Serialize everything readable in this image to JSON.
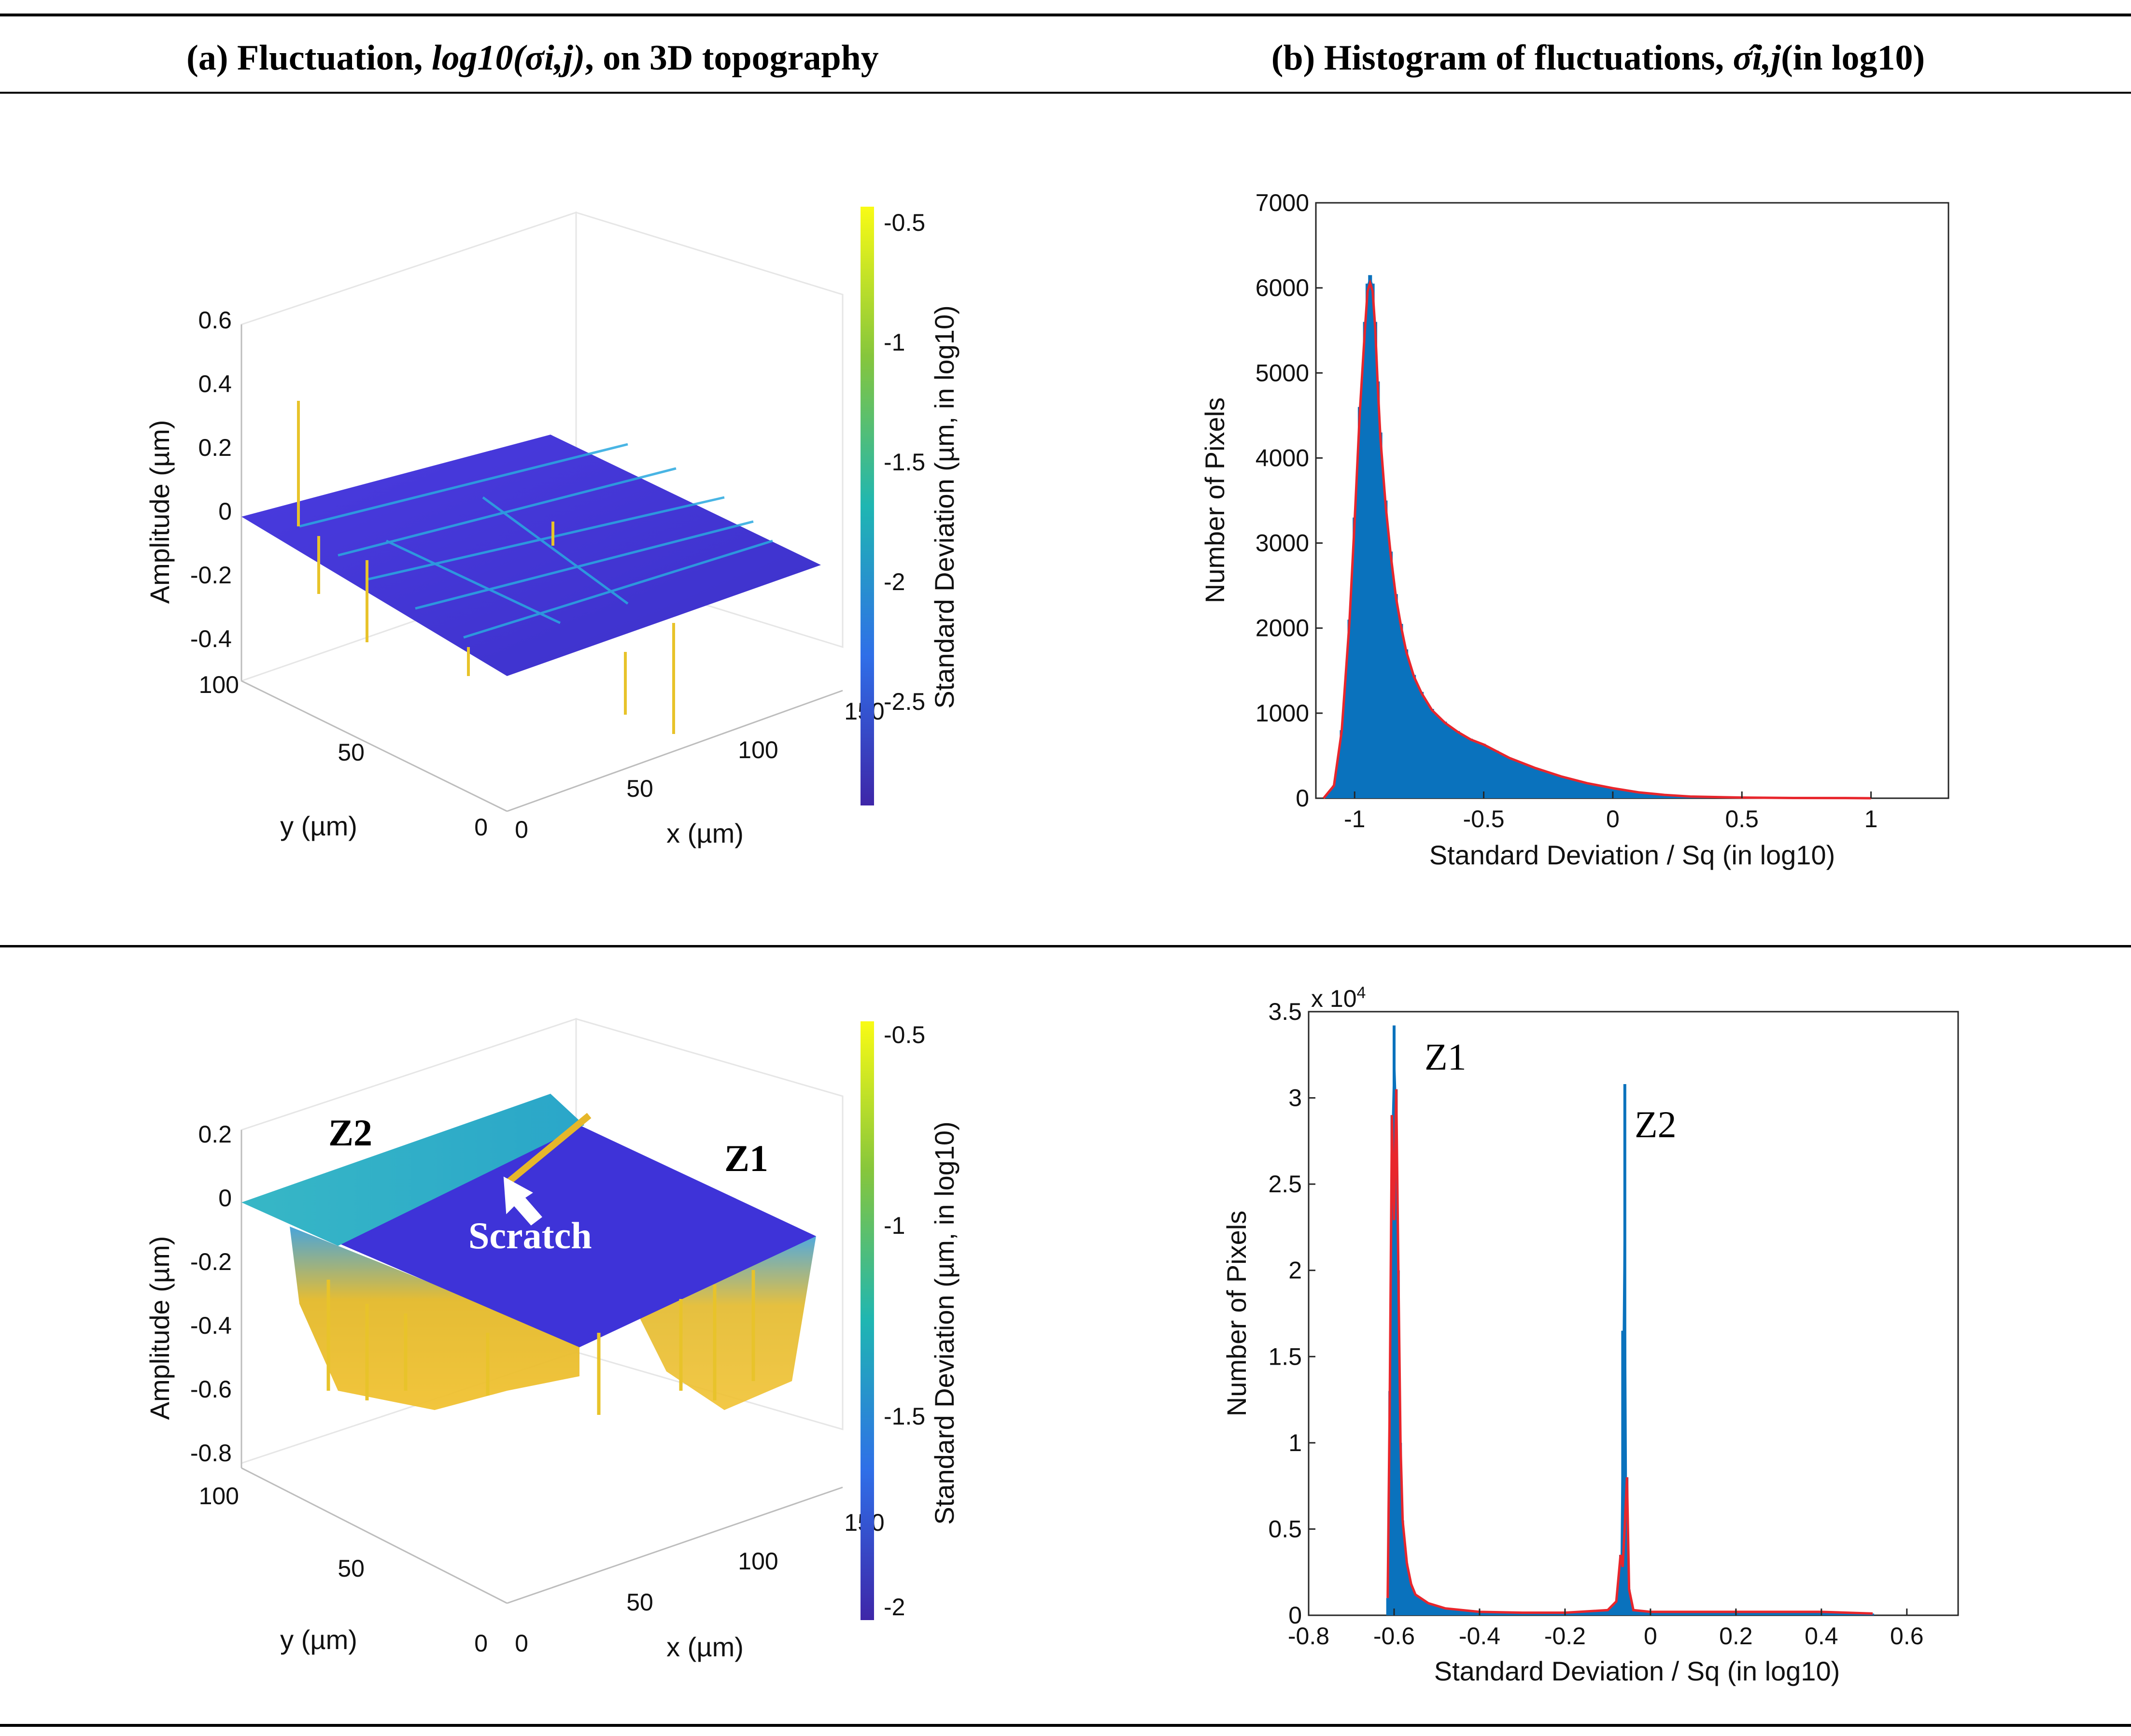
{
  "header": {
    "a_label": "(a)",
    "a_title_pre": "Fluctuation,",
    "a_title_math": "log10(σi,j)",
    "a_title_post": ", on 3D topography",
    "b_label": "(b)",
    "b_title_pre": "Histogram of fluctuations,",
    "b_title_math": "σ̂i,j",
    "b_title_post": " (in log10)"
  },
  "colors": {
    "hist_fill": "#0a72bd",
    "fit_line": "#e8262c",
    "surface_low": "#3f2fcf",
    "surface_mid": "#20b0a8",
    "surface_high": "#f9e21e"
  },
  "row1": {
    "surface": {
      "zlabel": "Amplitude (µm)",
      "xlabel": "x (µm)",
      "ylabel": "y (µm)",
      "zticks": [
        "0.6",
        "0.4",
        "0.2",
        "0",
        "-0.2",
        "-0.4"
      ],
      "yticks": [
        "100",
        "50",
        "0"
      ],
      "xticks": [
        "0",
        "50",
        "100",
        "150"
      ],
      "colorbar_label": "Standard Deviation (µm, in log10)",
      "colorbar_ticks": [
        "-0.5",
        "-1",
        "-1.5",
        "-2",
        "-2.5"
      ]
    },
    "histogram": {
      "xlabel": "Standard Deviation / Sq (in log10)",
      "ylabel": "Number of Pixels",
      "yticks": [
        "7000",
        "6000",
        "5000",
        "4000",
        "3000",
        "2000",
        "1000",
        "0"
      ],
      "xticks": [
        "-1",
        "-0.5",
        "0",
        "0.5",
        "1"
      ]
    }
  },
  "row2": {
    "surface": {
      "zlabel": "Amplitude (µm)",
      "xlabel": "x (µm)",
      "ylabel": "y (µm)",
      "zticks": [
        "0.2",
        "0",
        "-0.2",
        "-0.4",
        "-0.6",
        "-0.8"
      ],
      "yticks": [
        "100",
        "50",
        "0"
      ],
      "xticks": [
        "0",
        "50",
        "100",
        "150"
      ],
      "colorbar_label": "Standard Deviation (µm, in log10)",
      "colorbar_ticks": [
        "-0.5",
        "-1",
        "-1.5",
        "-2"
      ],
      "annotations": {
        "z1": "Z1",
        "z2": "Z2",
        "scratch": "Scratch"
      }
    },
    "histogram": {
      "xlabel": "Standard Deviation / Sq (in log10)",
      "ylabel": "Number of Pixels",
      "multiplier": "x 10",
      "multiplier_exp": "4",
      "yticks": [
        "3.5",
        "3",
        "2.5",
        "2",
        "1.5",
        "1",
        "0.5",
        "0"
      ],
      "xticks": [
        "-0.8",
        "-0.6",
        "-0.4",
        "-0.2",
        "0",
        "0.2",
        "0.4",
        "0.6"
      ],
      "annotations": {
        "z1": "Z1",
        "z2": "Z2"
      }
    }
  },
  "chart_data": [
    {
      "type": "bar",
      "subtype": "histogram",
      "xlabel": "Standard Deviation / Sq (in log10)",
      "ylabel": "Number of Pixels",
      "xlim": [
        -1.15,
        1.3
      ],
      "ylim": [
        0,
        7000
      ],
      "grid": false,
      "series": [
        {
          "name": "",
          "x": [
            -1.12,
            -1.08,
            -1.05,
            -1.02,
            -1.0,
            -0.98,
            -0.96,
            -0.95,
            -0.94,
            -0.93,
            -0.92,
            -0.91,
            -0.9,
            -0.88,
            -0.86,
            -0.84,
            -0.82,
            -0.8,
            -0.77,
            -0.74,
            -0.7,
            -0.65,
            -0.6,
            -0.55,
            -0.5,
            -0.45,
            -0.4,
            -0.3,
            -0.2,
            -0.1,
            0.0,
            0.1,
            0.2,
            0.3,
            0.5,
            0.7,
            0.9,
            1.0
          ],
          "values": [
            0,
            150,
            800,
            2100,
            3300,
            4600,
            5600,
            6050,
            6150,
            6050,
            5600,
            4900,
            4300,
            3500,
            2900,
            2400,
            2050,
            1750,
            1450,
            1250,
            1050,
            900,
            790,
            700,
            640,
            560,
            480,
            360,
            260,
            180,
            120,
            70,
            40,
            20,
            8,
            3,
            2,
            0
          ]
        }
      ]
    },
    {
      "type": "bar",
      "subtype": "histogram",
      "xlabel": "Standard Deviation / Sq (in log10)",
      "ylabel": "Number of Pixels",
      "y_multiplier": 10000,
      "xlim": [
        -0.8,
        0.72
      ],
      "ylim": [
        0,
        3.5
      ],
      "grid": false,
      "annotations": [
        "Z1",
        "Z2"
      ],
      "series": [
        {
          "name": "",
          "x": [
            -0.615,
            -0.61,
            -0.605,
            -0.6,
            -0.595,
            -0.59,
            -0.585,
            -0.58,
            -0.57,
            -0.56,
            -0.55,
            -0.52,
            -0.48,
            -0.4,
            -0.3,
            -0.2,
            -0.1,
            -0.08,
            -0.07,
            -0.065,
            -0.06,
            -0.055,
            -0.05,
            -0.04,
            0.0,
            0.2,
            0.4,
            0.52
          ],
          "values": [
            0.1,
            1.3,
            2.9,
            3.42,
            3.05,
            2.0,
            1.0,
            0.55,
            0.3,
            0.18,
            0.12,
            0.07,
            0.04,
            0.02,
            0.015,
            0.015,
            0.03,
            0.08,
            0.35,
            1.65,
            3.08,
            0.8,
            0.15,
            0.03,
            0.02,
            0.02,
            0.02,
            0.01
          ]
        }
      ]
    }
  ]
}
